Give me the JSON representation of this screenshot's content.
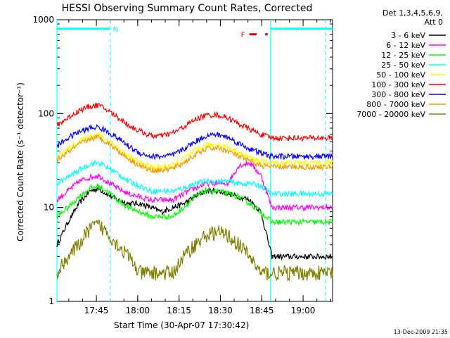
{
  "chart_data": {
    "type": "line",
    "title": "HESSI Observing Summary Count Rates, Corrected",
    "xlabel": "Start Time (30-Apr-07 17:30:42)",
    "ylabel": "Corrected Count Rate (s⁻¹ detector⁻¹)",
    "y_scale": "log",
    "ylim": [
      1,
      1000
    ],
    "xlim_minutes": [
      0,
      100
    ],
    "x_ticks": [
      {
        "label": "17:45",
        "minutes": 14.3
      },
      {
        "label": "18:00",
        "minutes": 29.3
      },
      {
        "label": "18:15",
        "minutes": 44.3
      },
      {
        "label": "18:30",
        "minutes": 59.3
      },
      {
        "label": "18:45",
        "minutes": 74.3
      },
      {
        "label": "19:00",
        "minutes": 89.3
      }
    ],
    "y_ticks": [
      {
        "label": "1",
        "value": 1
      },
      {
        "label": "10",
        "value": 10
      },
      {
        "label": "100",
        "value": 100
      },
      {
        "label": "1000",
        "value": 1000
      }
    ],
    "legend": {
      "placement": "right",
      "header": [
        "Det 1,3,4,5,6,9,",
        "Att 0"
      ]
    },
    "series": [
      {
        "name": "3 - 6 keV",
        "color": "#000000",
        "x": [
          0,
          4,
          8,
          12,
          15,
          18,
          22,
          26,
          30,
          34,
          38,
          42,
          46,
          50,
          54,
          58,
          62,
          66,
          70,
          74,
          78,
          82,
          86,
          90,
          94,
          98
        ],
        "y": [
          4,
          7,
          11,
          15,
          16,
          14,
          12,
          11,
          11,
          10,
          9,
          10,
          11,
          13,
          15,
          15,
          14,
          13,
          12,
          9,
          3,
          3,
          3,
          3,
          3,
          3
        ]
      },
      {
        "name": "6 - 12 keV",
        "color": "#ff00ff",
        "x": [
          0,
          4,
          8,
          12,
          15,
          18,
          22,
          26,
          30,
          34,
          38,
          42,
          46,
          50,
          54,
          58,
          62,
          66,
          70,
          74,
          78,
          82,
          86,
          90,
          94,
          98
        ],
        "y": [
          12,
          15,
          19,
          21,
          22,
          19,
          16,
          14,
          13,
          12,
          12,
          12,
          14,
          16,
          18,
          18,
          18,
          28,
          30,
          22,
          10,
          10,
          10,
          10,
          10,
          10
        ]
      },
      {
        "name": "12 - 25 keV",
        "color": "#00ff00",
        "x": [
          0,
          4,
          8,
          12,
          15,
          18,
          22,
          26,
          30,
          34,
          38,
          42,
          46,
          50,
          54,
          58,
          62,
          66,
          70,
          74,
          78,
          82,
          86,
          90,
          94,
          98
        ],
        "y": [
          8,
          10,
          13,
          16,
          17,
          15,
          12,
          10,
          9,
          8,
          8,
          8,
          10,
          13,
          15,
          15,
          14,
          13,
          11,
          9,
          7,
          7,
          7,
          7,
          7,
          7
        ]
      },
      {
        "name": "25 - 50 keV",
        "color": "#00ffff",
        "x": [
          0,
          4,
          8,
          12,
          15,
          18,
          22,
          26,
          30,
          34,
          38,
          42,
          46,
          50,
          54,
          58,
          62,
          66,
          70,
          74,
          78,
          82,
          86,
          90,
          94,
          98
        ],
        "y": [
          18,
          21,
          25,
          29,
          30,
          27,
          23,
          19,
          17,
          15,
          15,
          15,
          16,
          18,
          19,
          19,
          19,
          18,
          18,
          17,
          14,
          14,
          14,
          14,
          14,
          14
        ]
      },
      {
        "name": "50 - 100 keV",
        "color": "#ffff00",
        "x": [
          0,
          4,
          8,
          12,
          15,
          18,
          22,
          26,
          30,
          34,
          38,
          42,
          46,
          50,
          54,
          58,
          62,
          66,
          70,
          74,
          78,
          82,
          86,
          90,
          94,
          98
        ],
        "y": [
          35,
          42,
          50,
          58,
          60,
          53,
          44,
          35,
          30,
          27,
          27,
          28,
          33,
          40,
          46,
          47,
          44,
          38,
          34,
          31,
          30,
          30,
          30,
          30,
          30,
          30
        ]
      },
      {
        "name": "100 - 300 keV",
        "color": "#ff0000",
        "x": [
          0,
          4,
          8,
          12,
          15,
          18,
          22,
          26,
          30,
          34,
          38,
          42,
          46,
          50,
          54,
          58,
          62,
          66,
          70,
          74,
          78,
          82,
          86,
          90,
          94,
          98
        ],
        "y": [
          75,
          90,
          108,
          120,
          123,
          110,
          92,
          75,
          65,
          58,
          58,
          62,
          72,
          86,
          96,
          97,
          90,
          78,
          68,
          60,
          55,
          55,
          55,
          55,
          55,
          55
        ]
      },
      {
        "name": "300 - 800 keV",
        "color": "#0000ff",
        "x": [
          0,
          4,
          8,
          12,
          15,
          18,
          22,
          26,
          30,
          34,
          38,
          42,
          46,
          50,
          54,
          58,
          62,
          66,
          70,
          74,
          78,
          82,
          86,
          90,
          94,
          98
        ],
        "y": [
          45,
          55,
          64,
          70,
          72,
          65,
          55,
          45,
          38,
          35,
          35,
          36,
          42,
          50,
          58,
          60,
          56,
          48,
          42,
          38,
          35,
          35,
          35,
          35,
          35,
          35
        ]
      },
      {
        "name": "800 - 7000 keV",
        "color": "#ff9900",
        "x": [
          0,
          4,
          8,
          12,
          15,
          18,
          22,
          26,
          30,
          34,
          38,
          42,
          46,
          50,
          54,
          58,
          62,
          66,
          70,
          74,
          78,
          82,
          86,
          90,
          94,
          98
        ],
        "y": [
          32,
          39,
          47,
          54,
          56,
          50,
          41,
          33,
          28,
          25,
          25,
          26,
          30,
          36,
          42,
          43,
          40,
          35,
          31,
          28,
          27,
          27,
          27,
          27,
          27,
          27
        ]
      },
      {
        "name": "7000 - 20000 keV",
        "color": "#808000",
        "x": [
          0,
          4,
          8,
          12,
          15,
          18,
          22,
          26,
          30,
          34,
          38,
          42,
          46,
          50,
          54,
          58,
          62,
          66,
          70,
          74,
          78,
          82,
          86,
          90,
          94,
          98
        ],
        "y": [
          2,
          3,
          4,
          6,
          6.5,
          5.5,
          4,
          3,
          2,
          2,
          2,
          2,
          3,
          4,
          5,
          5.5,
          5,
          4,
          3,
          2,
          2,
          2,
          2,
          2,
          2,
          2
        ]
      }
    ],
    "annotations": [
      {
        "type": "bar",
        "label": "N",
        "color": "#00ffff",
        "y_level": 800,
        "x_start": 0,
        "x_end": 19.3
      },
      {
        "type": "bar",
        "label": "",
        "color": "#00ffff",
        "y_level": 800,
        "x_start": 77.5,
        "x_end": 100
      },
      {
        "type": "bar",
        "label": "F",
        "color": "#ff0000",
        "y_level": 700,
        "x_start": 69.8,
        "x_end": 72.5
      },
      {
        "type": "bar",
        "label": "",
        "color": "#ff0000",
        "y_level": 700,
        "x_start": 75.5,
        "x_end": 76.5
      }
    ],
    "vlines": [
      {
        "minutes": 0,
        "style": "solid",
        "color": "#00ffff"
      },
      {
        "minutes": 19.3,
        "style": "dashed",
        "color": "#00ffff"
      },
      {
        "minutes": 77.5,
        "style": "solid",
        "color": "#00ffff"
      },
      {
        "minutes": 97.6,
        "style": "dashed",
        "color": "#00ffff"
      }
    ],
    "footer": "13-Dec-2009 21:35"
  }
}
